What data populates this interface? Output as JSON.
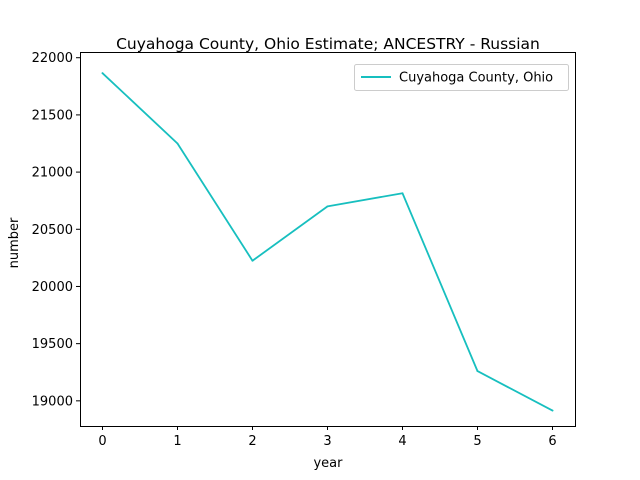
{
  "chart_data": {
    "type": "line",
    "title": "Cuyahoga County, Ohio Estimate; ANCESTRY - Russian",
    "xlabel": "year",
    "ylabel": "number",
    "x": [
      0,
      1,
      2,
      3,
      4,
      5,
      6
    ],
    "xticks": [
      "0",
      "1",
      "2",
      "3",
      "4",
      "5",
      "6"
    ],
    "yticks": [
      "19000",
      "19500",
      "20000",
      "20500",
      "21000",
      "21500",
      "22000"
    ],
    "xlim": [
      -0.3,
      6.3
    ],
    "ylim": [
      18780,
      22050
    ],
    "grid": false,
    "legend_position": "top-right",
    "series": [
      {
        "name": "Cuyahoga County, Ohio",
        "color": "#17bfbf",
        "values": [
          21865,
          21250,
          20225,
          20700,
          20815,
          19260,
          18915
        ]
      }
    ]
  }
}
